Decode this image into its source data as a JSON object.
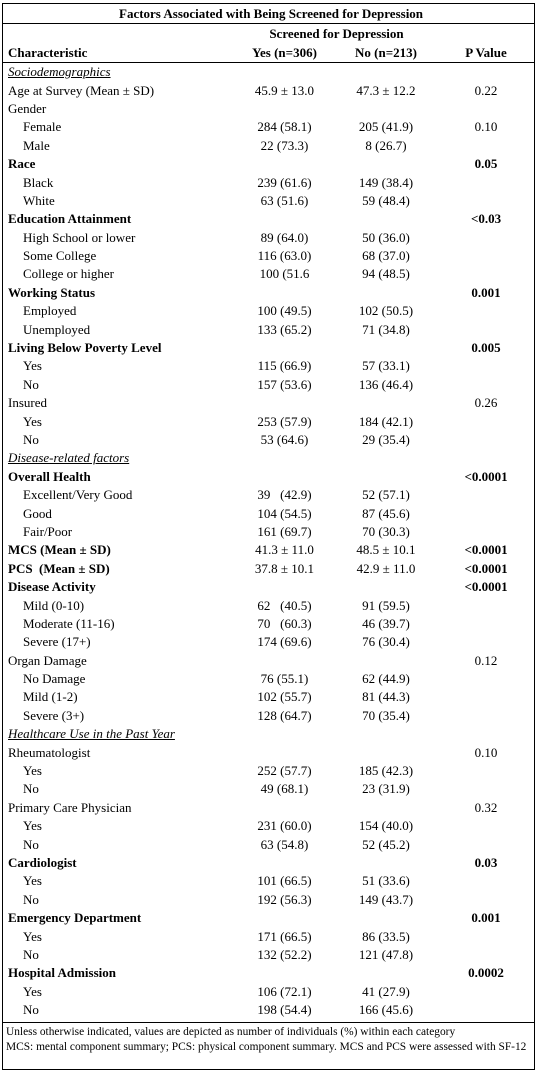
{
  "title": "Factors Associated with Being Screened for Depression",
  "group_header": "Screened for Depression",
  "columns": [
    "Characteristic",
    "Yes (n=306)",
    "No (n=213)",
    "P Value"
  ],
  "table": {
    "rows": [
      {
        "style": "section",
        "label": "Sociodemographics"
      },
      {
        "style": "plain",
        "label": "Age at Survey (Mean ± SD)",
        "yes": "45.9 ± 13.0",
        "no": "47.3 ± 12.2",
        "p": "0.22"
      },
      {
        "style": "plain",
        "label": "Gender"
      },
      {
        "style": "item",
        "label": "Female",
        "yes": "284 (58.1)",
        "no": "205 (41.9)",
        "p": "0.10"
      },
      {
        "style": "item",
        "label": "Male",
        "yes": "22 (73.3)",
        "no": "8 (26.7)"
      },
      {
        "style": "bold",
        "label": "Race",
        "p": "0.05"
      },
      {
        "style": "item",
        "label": "Black",
        "yes": "239 (61.6)",
        "no": "149 (38.4)"
      },
      {
        "style": "item",
        "label": "White",
        "yes": "63 (51.6)",
        "no": "59 (48.4)"
      },
      {
        "style": "bold",
        "label": "Education Attainment",
        "p": "<0.03"
      },
      {
        "style": "item",
        "label": "High School or lower",
        "yes": "89 (64.0)",
        "no": "50 (36.0)"
      },
      {
        "style": "item",
        "label": "Some College",
        "yes": "116 (63.0)",
        "no": "68 (37.0)"
      },
      {
        "style": "item",
        "label": "College or higher",
        "yes": "100 (51.6",
        "no": "94 (48.5)"
      },
      {
        "style": "bold",
        "label": "Working Status",
        "p": "0.001"
      },
      {
        "style": "item",
        "label": "Employed",
        "yes": "100 (49.5)",
        "no": "102 (50.5)"
      },
      {
        "style": "item",
        "label": "Unemployed",
        "yes": "133 (65.2)",
        "no": "71 (34.8)"
      },
      {
        "style": "bold",
        "label": "Living Below Poverty Level",
        "p": "0.005"
      },
      {
        "style": "item",
        "label": "Yes",
        "yes": "115 (66.9)",
        "no": "57 (33.1)"
      },
      {
        "style": "item",
        "label": "No",
        "yes": "157 (53.6)",
        "no": "136 (46.4)"
      },
      {
        "style": "plain",
        "label": "Insured",
        "p": "0.26"
      },
      {
        "style": "item",
        "label": "Yes",
        "yes": "253 (57.9)",
        "no": "184 (42.1)"
      },
      {
        "style": "item",
        "label": "No",
        "yes": "53 (64.6)",
        "no": "29 (35.4)"
      },
      {
        "style": "section",
        "label": "Disease-related factors"
      },
      {
        "style": "bold",
        "label": "Overall Health",
        "p": "<0.0001"
      },
      {
        "style": "item",
        "label": "Excellent/Very Good",
        "yes": "39   (42.9)",
        "no": "52 (57.1)"
      },
      {
        "style": "item",
        "label": "Good",
        "yes": "104 (54.5)",
        "no": "87 (45.6)"
      },
      {
        "style": "item",
        "label": "Fair/Poor",
        "yes": "161 (69.7)",
        "no": "70 (30.3)"
      },
      {
        "style": "bold",
        "label": "MCS (Mean ± SD)",
        "yes": "41.3 ± 11.0",
        "no": "48.5 ± 10.1",
        "p": "<0.0001"
      },
      {
        "style": "bold",
        "label": "PCS  (Mean ± SD)",
        "yes": "37.8 ± 10.1",
        "no": "42.9 ± 11.0",
        "p": "<0.0001"
      },
      {
        "style": "bold",
        "label": "Disease Activity",
        "p": "<0.0001"
      },
      {
        "style": "item",
        "label": "Mild (0-10)",
        "yes": "62   (40.5)",
        "no": "91 (59.5)"
      },
      {
        "style": "item",
        "label": "Moderate (11-16)",
        "yes": "70   (60.3)",
        "no": "46 (39.7)"
      },
      {
        "style": "item",
        "label": "Severe (17+)",
        "yes": "174 (69.6)",
        "no": "76 (30.4)"
      },
      {
        "style": "plain",
        "label": "Organ Damage",
        "p": "0.12"
      },
      {
        "style": "item",
        "label": "No Damage",
        "yes": "76 (55.1)",
        "no": "62 (44.9)"
      },
      {
        "style": "item",
        "label": "Mild (1-2)",
        "yes": "102 (55.7)",
        "no": "81 (44.3)"
      },
      {
        "style": "item",
        "label": "Severe (3+)",
        "yes": "128 (64.7)",
        "no": "70 (35.4)"
      },
      {
        "style": "section",
        "label": "Healthcare Use in the Past Year"
      },
      {
        "style": "plain",
        "label": "Rheumatologist",
        "p": "0.10"
      },
      {
        "style": "item",
        "label": "Yes",
        "yes": "252 (57.7)",
        "no": "185 (42.3)"
      },
      {
        "style": "item",
        "label": "No",
        "yes": "49 (68.1)",
        "no": "23 (31.9)"
      },
      {
        "style": "plain",
        "label": "Primary Care Physician",
        "p": "0.32"
      },
      {
        "style": "item",
        "label": "Yes",
        "yes": "231 (60.0)",
        "no": "154 (40.0)"
      },
      {
        "style": "item",
        "label": "No",
        "yes": "63 (54.8)",
        "no": "52 (45.2)"
      },
      {
        "style": "bold",
        "label": "Cardiologist",
        "p": "0.03"
      },
      {
        "style": "item",
        "label": "Yes",
        "yes": "101 (66.5)",
        "no": "51 (33.6)"
      },
      {
        "style": "item",
        "label": "No",
        "yes": "192 (56.3)",
        "no": "149 (43.7)"
      },
      {
        "style": "bold",
        "label": "Emergency Department",
        "p": "0.001"
      },
      {
        "style": "item",
        "label": "Yes",
        "yes": "171 (66.5)",
        "no": "86 (33.5)"
      },
      {
        "style": "item",
        "label": "No",
        "yes": "132 (52.2)",
        "no": "121 (47.8)"
      },
      {
        "style": "bold",
        "label": "Hospital Admission",
        "p": "0.0002"
      },
      {
        "style": "item",
        "label": "Yes",
        "yes": "106 (72.1)",
        "no": "41 (27.9)"
      },
      {
        "style": "item",
        "label": "No",
        "yes": "198 (54.4)",
        "no": "166 (45.6)"
      }
    ]
  },
  "footnotes": [
    "Unless otherwise indicated, values are depicted as number of individuals (%) within each category",
    "MCS: mental component summary; PCS: physical component summary. MCS and PCS were assessed with SF-12"
  ]
}
